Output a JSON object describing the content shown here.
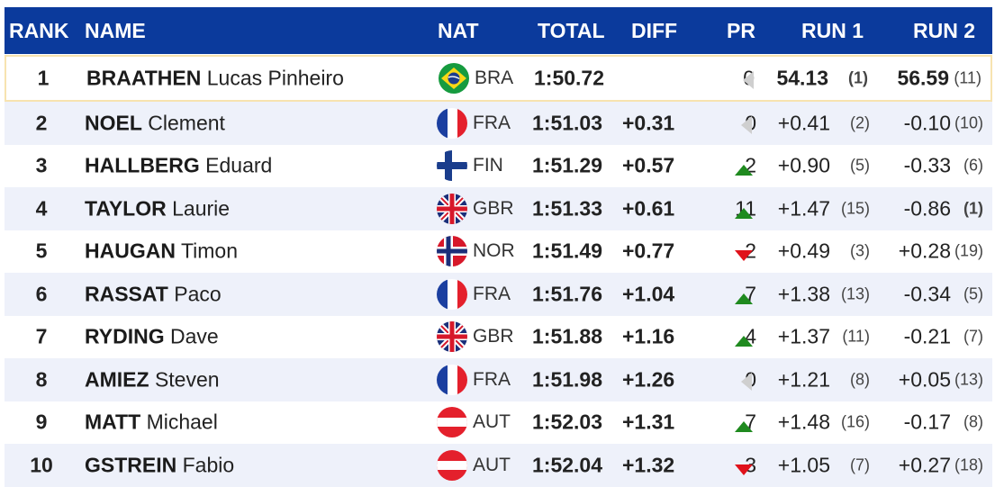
{
  "header": {
    "rank": "RANK",
    "name": "NAME",
    "nat": "NAT",
    "total": "TOTAL",
    "diff": "DIFF",
    "pr": "PR",
    "run1": "RUN 1",
    "run2": "RUN 2"
  },
  "rows": [
    {
      "rank": "1",
      "last": "BRAATHEN",
      "first": "Lucas Pinheiro",
      "nat": "BRA",
      "flag": "bra-flag-icon",
      "total": "1:50.72",
      "diff": "",
      "pr": "0",
      "pr_icon": "neutral-arrow-icon",
      "run1": "54.13",
      "run1_rank": "(1)",
      "run2": "56.59",
      "run2_rank": "(11)"
    },
    {
      "rank": "2",
      "last": "NOEL",
      "first": "Clement",
      "nat": "FRA",
      "flag": "fra-flag-icon",
      "total": "1:51.03",
      "diff": "+0.31",
      "pr": "0",
      "pr_icon": "neutral-arrow-icon",
      "run1": "+0.41",
      "run1_rank": "(2)",
      "run2": "-0.10",
      "run2_rank": "(10)"
    },
    {
      "rank": "3",
      "last": "HALLBERG",
      "first": "Eduard",
      "nat": "FIN",
      "flag": "fin-flag-icon",
      "total": "1:51.29",
      "diff": "+0.57",
      "pr": "2",
      "pr_icon": "up-arrow-icon",
      "run1": "+0.90",
      "run1_rank": "(5)",
      "run2": "-0.33",
      "run2_rank": "(6)"
    },
    {
      "rank": "4",
      "last": "TAYLOR",
      "first": "Laurie",
      "nat": "GBR",
      "flag": "gbr-flag-icon",
      "total": "1:51.33",
      "diff": "+0.61",
      "pr": "11",
      "pr_icon": "up-arrow-icon",
      "run1": "+1.47",
      "run1_rank": "(15)",
      "run2": "-0.86",
      "run2_rank": "(1)"
    },
    {
      "rank": "5",
      "last": "HAUGAN",
      "first": "Timon",
      "nat": "NOR",
      "flag": "nor-flag-icon",
      "total": "1:51.49",
      "diff": "+0.77",
      "pr": "-2",
      "pr_icon": "down-arrow-icon",
      "run1": "+0.49",
      "run1_rank": "(3)",
      "run2": "+0.28",
      "run2_rank": "(19)"
    },
    {
      "rank": "6",
      "last": "RASSAT",
      "first": "Paco",
      "nat": "FRA",
      "flag": "fra-flag-icon",
      "total": "1:51.76",
      "diff": "+1.04",
      "pr": "7",
      "pr_icon": "up-arrow-icon",
      "run1": "+1.38",
      "run1_rank": "(13)",
      "run2": "-0.34",
      "run2_rank": "(5)"
    },
    {
      "rank": "7",
      "last": "RYDING",
      "first": "Dave",
      "nat": "GBR",
      "flag": "gbr-flag-icon",
      "total": "1:51.88",
      "diff": "+1.16",
      "pr": "4",
      "pr_icon": "up-arrow-icon",
      "run1": "+1.37",
      "run1_rank": "(11)",
      "run2": "-0.21",
      "run2_rank": "(7)"
    },
    {
      "rank": "8",
      "last": "AMIEZ",
      "first": "Steven",
      "nat": "FRA",
      "flag": "fra-flag-icon",
      "total": "1:51.98",
      "diff": "+1.26",
      "pr": "0",
      "pr_icon": "neutral-arrow-icon",
      "run1": "+1.21",
      "run1_rank": "(8)",
      "run2": "+0.05",
      "run2_rank": "(13)"
    },
    {
      "rank": "9",
      "last": "MATT",
      "first": "Michael",
      "nat": "AUT",
      "flag": "aut-flag-icon",
      "total": "1:52.03",
      "diff": "+1.31",
      "pr": "7",
      "pr_icon": "up-arrow-icon",
      "run1": "+1.48",
      "run1_rank": "(16)",
      "run2": "-0.17",
      "run2_rank": "(8)"
    },
    {
      "rank": "10",
      "last": "GSTREIN",
      "first": "Fabio",
      "nat": "AUT",
      "flag": "aut-flag-icon",
      "total": "1:52.04",
      "diff": "+1.32",
      "pr": "-3",
      "pr_icon": "down-arrow-icon",
      "run1": "+1.05",
      "run1_rank": "(7)",
      "run2": "+0.27",
      "run2_rank": "(18)"
    }
  ],
  "colors": {
    "header_bg": "#0b3a9c",
    "up": "#1f8a1f",
    "down": "#e0121b",
    "neutral": "#cfcfcf",
    "leader_border": "#f7e3b0",
    "stripe": "#eef1fa"
  }
}
